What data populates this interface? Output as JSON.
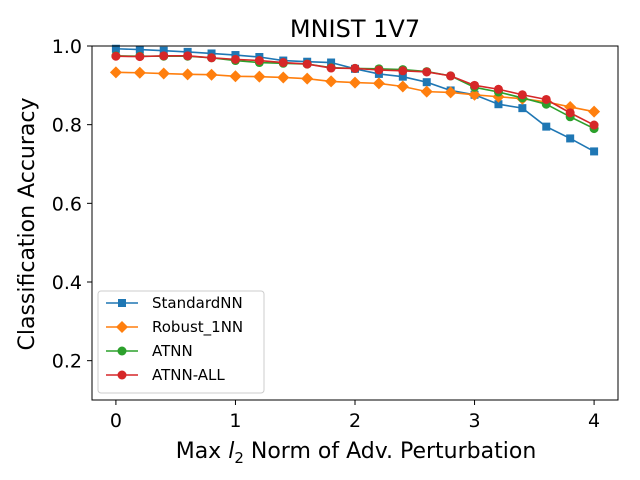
{
  "chart_data": {
    "type": "line",
    "title": "MNIST 1V7",
    "xlabel": "Max $l_2$ Norm of Adv. Perturbation",
    "xlabel_parts": {
      "pre": "Max ",
      "var": "l",
      "sub": "2",
      "post": " Norm of Adv. Perturbation"
    },
    "ylabel": "Classification Accuracy",
    "xlim": [
      -0.2,
      4.2
    ],
    "ylim": [
      0.1,
      1.0
    ],
    "xticks": [
      0,
      1,
      2,
      3,
      4
    ],
    "xtick_labels": [
      "0",
      "1",
      "2",
      "3",
      "4"
    ],
    "yticks": [
      0.2,
      0.4,
      0.6,
      0.8,
      1.0
    ],
    "ytick_labels": [
      "0.2",
      "0.4",
      "0.6",
      "0.8",
      "1.0"
    ],
    "grid": false,
    "legend_position": "lower-left",
    "x": [
      0,
      0.2,
      0.4,
      0.6,
      0.8,
      1.0,
      1.2,
      1.4,
      1.6,
      1.8,
      2.0,
      2.2,
      2.4,
      2.6,
      2.8,
      3.0,
      3.2,
      3.4,
      3.6,
      3.8,
      4.0
    ],
    "series": [
      {
        "name": "StandardNN",
        "color": "#1f77b4",
        "marker": "square",
        "values": [
          0.993,
          0.991,
          0.988,
          0.985,
          0.981,
          0.977,
          0.972,
          0.963,
          0.96,
          0.958,
          0.942,
          0.929,
          0.922,
          0.908,
          0.887,
          0.876,
          0.852,
          0.842,
          0.795,
          0.765,
          0.732
        ]
      },
      {
        "name": "Robust_1NN",
        "color": "#ff7f0e",
        "marker": "diamond",
        "values": [
          0.933,
          0.932,
          0.93,
          0.928,
          0.927,
          0.923,
          0.922,
          0.92,
          0.917,
          0.91,
          0.907,
          0.905,
          0.897,
          0.884,
          0.882,
          0.876,
          0.871,
          0.866,
          0.858,
          0.845,
          0.833
        ]
      },
      {
        "name": "ATNN",
        "color": "#2ca02c",
        "marker": "circle",
        "values": [
          0.975,
          0.974,
          0.974,
          0.974,
          0.97,
          0.963,
          0.958,
          0.956,
          0.954,
          0.945,
          0.943,
          0.942,
          0.94,
          0.935,
          0.924,
          0.895,
          0.883,
          0.868,
          0.852,
          0.82,
          0.79
        ]
      },
      {
        "name": "ATNN-ALL",
        "color": "#d62728",
        "marker": "circle",
        "values": [
          0.974,
          0.973,
          0.975,
          0.975,
          0.97,
          0.966,
          0.963,
          0.958,
          0.954,
          0.944,
          0.943,
          0.939,
          0.937,
          0.934,
          0.924,
          0.9,
          0.89,
          0.876,
          0.864,
          0.83,
          0.799
        ]
      }
    ]
  }
}
